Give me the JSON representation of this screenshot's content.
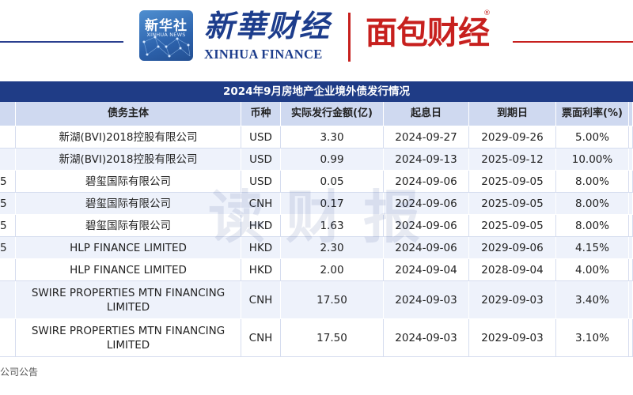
{
  "header": {
    "xinhua_tile_name": "新华社",
    "xinhua_tile_sub": "XINHUA NEWS",
    "xinhua_finance_cn": "新華财经",
    "xinhua_finance_en": "XINHUA FINANCE",
    "mianbao_logo": "面包财经",
    "registered_mark": "®",
    "colors": {
      "navy": "#1f3c86",
      "red": "#c7201e"
    }
  },
  "table": {
    "title": "2024年9月房地产企业境外债发行情况",
    "columns": [
      "",
      "债务主体",
      "币种",
      "实际发行金额(亿)",
      "起息日",
      "到期日",
      "票面利率(%)",
      ""
    ],
    "rows": [
      {
        "prefix": "",
        "issuer": "新湖(BVI)2018控股有限公司",
        "currency": "USD",
        "amount": "3.30",
        "start": "2024-09-27",
        "maturity": "2029-09-26",
        "coupon": "5.00%"
      },
      {
        "prefix": "",
        "issuer": "新湖(BVI)2018控股有限公司",
        "currency": "USD",
        "amount": "0.99",
        "start": "2024-09-13",
        "maturity": "2025-09-12",
        "coupon": "10.00%"
      },
      {
        "prefix": "5",
        "issuer": "碧玺国际有限公司",
        "currency": "USD",
        "amount": "0.05",
        "start": "2024-09-06",
        "maturity": "2025-09-05",
        "coupon": "8.00%"
      },
      {
        "prefix": "5",
        "issuer": "碧玺国际有限公司",
        "currency": "CNH",
        "amount": "0.17",
        "start": "2024-09-06",
        "maturity": "2025-09-05",
        "coupon": "8.00%"
      },
      {
        "prefix": "5",
        "issuer": "碧玺国际有限公司",
        "currency": "HKD",
        "amount": "1.63",
        "start": "2024-09-06",
        "maturity": "2025-09-05",
        "coupon": "8.00%"
      },
      {
        "prefix": "5",
        "issuer": "HLP FINANCE LIMITED",
        "currency": "HKD",
        "amount": "2.30",
        "start": "2024-09-06",
        "maturity": "2029-09-06",
        "coupon": "4.15%"
      },
      {
        "prefix": "",
        "issuer": "HLP FINANCE LIMITED",
        "currency": "HKD",
        "amount": "2.00",
        "start": "2024-09-04",
        "maturity": "2028-09-04",
        "coupon": "4.00%"
      },
      {
        "prefix": "",
        "issuer": "SWIRE PROPERTIES MTN FINANCING LIMITED",
        "currency": "CNH",
        "amount": "17.50",
        "start": "2024-09-03",
        "maturity": "2029-09-03",
        "coupon": "3.40%"
      },
      {
        "prefix": "",
        "issuer": "SWIRE PROPERTIES MTN FINANCING LIMITED",
        "currency": "CNH",
        "amount": "17.50",
        "start": "2024-09-03",
        "maturity": "2029-09-03",
        "coupon": "3.10%"
      }
    ]
  },
  "watermark": "读财报",
  "source": "公司公告"
}
